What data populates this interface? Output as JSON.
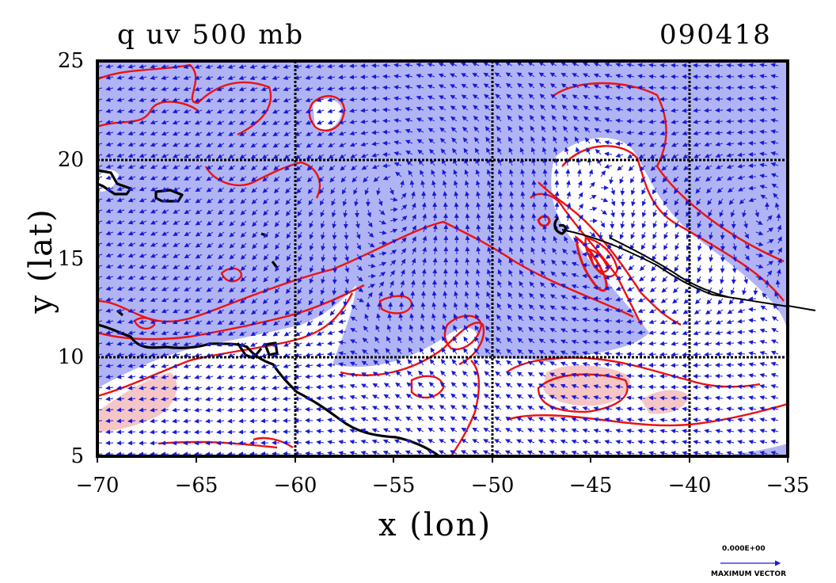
{
  "title": {
    "left": "q uv 500 mb",
    "right": "090418"
  },
  "axes": {
    "xlabel": "x (lon)",
    "ylabel": "y (lat)",
    "xticks": [
      "−70",
      "−65",
      "−60",
      "−55",
      "−50",
      "−45",
      "−40",
      "−35"
    ],
    "yticks": [
      "25",
      "20",
      "15",
      "10",
      "5"
    ],
    "xlim": [
      -70,
      -35
    ],
    "ylim": [
      5,
      25
    ],
    "grid": true
  },
  "legend": {
    "vector_value": "0.000E+00",
    "vector_caption": "MAXIMUM VECTOR"
  },
  "colors": {
    "ocean_fill": "#b0b4f4",
    "moist_fill": "#ffffff",
    "high_fill": "#f6c6c6",
    "contour": "#ee1111",
    "vector": "#1a1ad6",
    "coast": "#000000",
    "grid": "#000000"
  }
}
